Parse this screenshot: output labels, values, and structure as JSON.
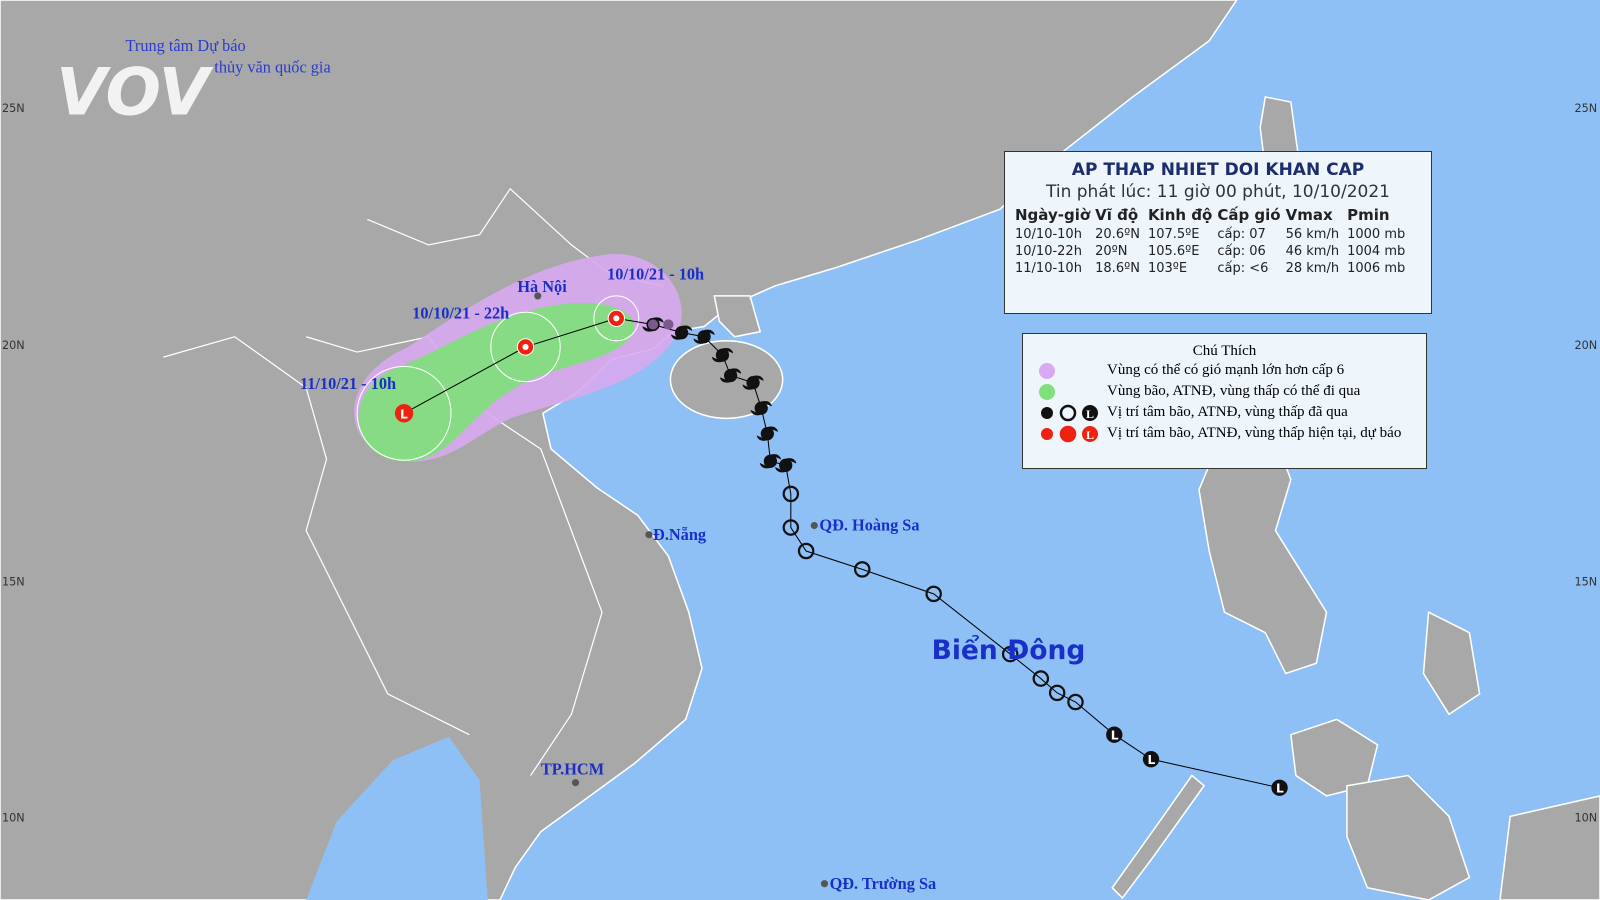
{
  "logo": {
    "brand": "VOV",
    "line1": "Trung tâm Dự báo",
    "line2": "thủy văn quốc gia"
  },
  "latitude_labels": [
    "25N",
    "20N",
    "15N",
    "10N"
  ],
  "low_symbol": "L",
  "info_box": {
    "title": "AP THAP NHIET DOI KHAN CAP",
    "issued": "Tin phát lúc: 11 giờ 00 phút, 10/10/2021",
    "columns": [
      "Ngày-giờ",
      "Vĩ độ",
      "Kinh độ",
      "Cấp gió",
      "Vmax",
      "Pmin"
    ],
    "rows": [
      [
        "10/10-10h",
        "20.6ºN",
        "107.5ºE",
        "cấp: 07",
        "56 km/h",
        "1000 mb"
      ],
      [
        "10/10-22h",
        "20ºN",
        "105.6ºE",
        "cấp: 06",
        "46 km/h",
        "1004 mb"
      ],
      [
        "11/10-10h",
        "18.6ºN",
        "103ºE",
        "cấp: <6",
        "28 km/h",
        "1006 mb"
      ]
    ]
  },
  "legend": {
    "title": "Chú Thích",
    "items": [
      "Vùng có thể có gió mạnh lớn hơn cấp 6",
      "Vùng bão, ATNĐ, vùng thấp có thể đi qua",
      "Vị trí tâm bão, ATNĐ, vùng thấp đã qua",
      "Vị trí tâm bão, ATNĐ, vùng thấp hiện tại, dự báo"
    ]
  },
  "track_labels": [
    "10/10/21 - 10h",
    "10/10/21 - 22h",
    "11/10/21 - 10h"
  ],
  "places": [
    "Hà Nội",
    "Đ.Nẵng",
    "QĐ. Hoàng Sa",
    "Biển Đông",
    "TP.HCM",
    "QĐ. Trường Sa"
  ]
}
